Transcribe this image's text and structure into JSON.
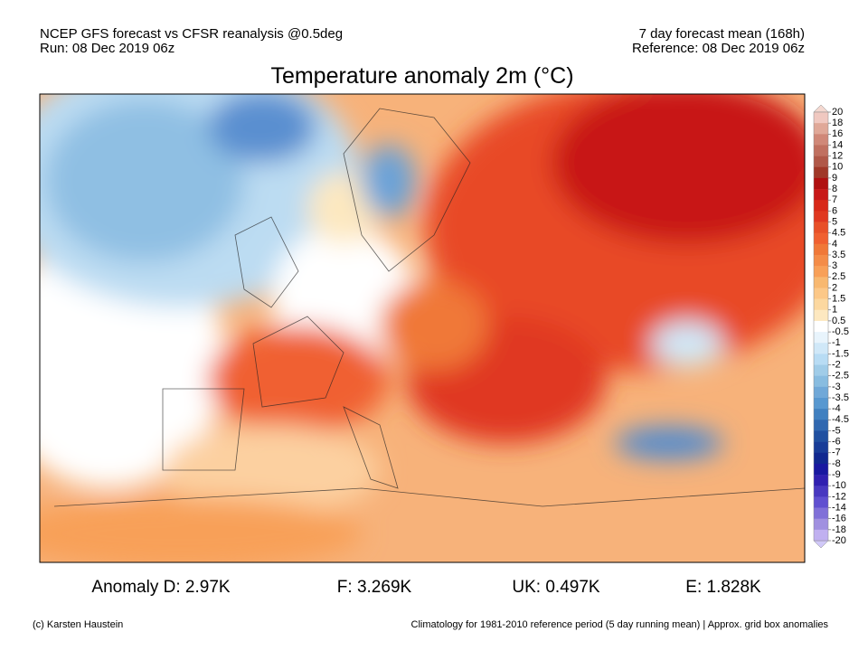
{
  "header": {
    "left": [
      "NCEP GFS forecast vs CFSR reanalysis @0.5deg",
      "Run: 08 Dec 2019 06z"
    ],
    "right": [
      "7 day forecast mean (168h)",
      "Reference: 08 Dec 2019 06z"
    ]
  },
  "title": "Temperature anomaly 2m (°C)",
  "colorbar": {
    "ticks": [
      20,
      18,
      16,
      14,
      12,
      10,
      9,
      8,
      7,
      6,
      5,
      4.5,
      4,
      3.5,
      3,
      2.5,
      2,
      1.5,
      1,
      0.5,
      -0.5,
      -1,
      -1.5,
      -2,
      -2.5,
      -3,
      -3.5,
      -4,
      -4.5,
      -5,
      -6,
      -7,
      -8,
      -9,
      -10,
      -12,
      -14,
      -16,
      -18,
      -20
    ],
    "colors": [
      "#f0c8c0",
      "#e0a898",
      "#d08878",
      "#c07060",
      "#b05848",
      "#a03828",
      "#b01010",
      "#c81818",
      "#d82818",
      "#e03820",
      "#e85028",
      "#f06030",
      "#f07838",
      "#f48c48",
      "#f8a058",
      "#f8b870",
      "#fcc888",
      "#fcd8a0",
      "#fde8c0",
      "#ffffff",
      "#e8f4fc",
      "#d0e8f8",
      "#b8dcf4",
      "#a0cce8",
      "#88bce0",
      "#70a8d8",
      "#5898d0",
      "#4080c0",
      "#3068b0",
      "#2050a0",
      "#183c98",
      "#102890",
      "#1818a0",
      "#3020b0",
      "#4838c0",
      "#6050d0",
      "#8070d8",
      "#a090e0",
      "#c0b0f0"
    ]
  },
  "anomalies": [
    "Anomaly D: 2.97K",
    "F: 3.269K",
    "UK: 0.497K",
    "E: 1.828K"
  ],
  "footer": {
    "left": "(c) Karsten Haustein",
    "right": "Climatology for 1981-2010 reference period (5 day running mean) | Approx. grid box anomalies"
  }
}
